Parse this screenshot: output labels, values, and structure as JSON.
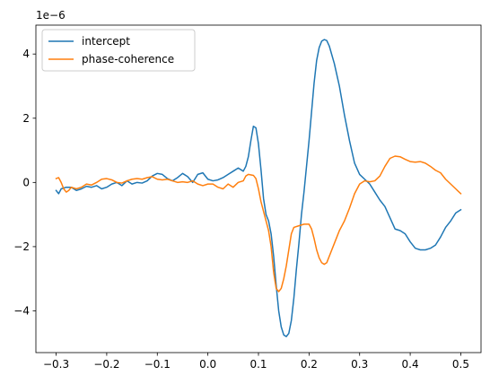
{
  "chart_data": {
    "type": "line",
    "title": "",
    "xlabel": "",
    "ylabel": "",
    "y_offset_label": "1e−6",
    "xlim": [
      -0.34,
      0.54
    ],
    "ylim": [
      -5.3,
      4.9
    ],
    "xticks": [
      {
        "value": -0.3,
        "label": "−0.3"
      },
      {
        "value": -0.2,
        "label": "−0.2"
      },
      {
        "value": -0.1,
        "label": "−0.1"
      },
      {
        "value": 0.0,
        "label": "0.0"
      },
      {
        "value": 0.1,
        "label": "0.1"
      },
      {
        "value": 0.2,
        "label": "0.2"
      },
      {
        "value": 0.3,
        "label": "0.3"
      },
      {
        "value": 0.4,
        "label": "0.4"
      },
      {
        "value": 0.5,
        "label": "0.5"
      }
    ],
    "yticks": [
      {
        "value": -4,
        "label": "−4"
      },
      {
        "value": -2,
        "label": "−2"
      },
      {
        "value": 0,
        "label": "0"
      },
      {
        "value": 2,
        "label": "2"
      },
      {
        "value": 4,
        "label": "4"
      }
    ],
    "grid": false,
    "legend": "upper-left",
    "series": [
      {
        "name": "intercept",
        "color": "#1f77b4",
        "points": [
          [
            -0.3,
            -0.25
          ],
          [
            -0.295,
            -0.35
          ],
          [
            -0.29,
            -0.2
          ],
          [
            -0.28,
            -0.15
          ],
          [
            -0.27,
            -0.15
          ],
          [
            -0.26,
            -0.25
          ],
          [
            -0.25,
            -0.2
          ],
          [
            -0.24,
            -0.12
          ],
          [
            -0.23,
            -0.15
          ],
          [
            -0.22,
            -0.1
          ],
          [
            -0.21,
            -0.2
          ],
          [
            -0.2,
            -0.15
          ],
          [
            -0.19,
            -0.05
          ],
          [
            -0.18,
            0.0
          ],
          [
            -0.17,
            -0.1
          ],
          [
            -0.16,
            0.05
          ],
          [
            -0.15,
            -0.05
          ],
          [
            -0.14,
            0.0
          ],
          [
            -0.13,
            -0.02
          ],
          [
            -0.12,
            0.05
          ],
          [
            -0.11,
            0.2
          ],
          [
            -0.1,
            0.28
          ],
          [
            -0.09,
            0.25
          ],
          [
            -0.08,
            0.12
          ],
          [
            -0.07,
            0.05
          ],
          [
            -0.06,
            0.15
          ],
          [
            -0.05,
            0.28
          ],
          [
            -0.04,
            0.18
          ],
          [
            -0.03,
            0.0
          ],
          [
            -0.02,
            0.25
          ],
          [
            -0.01,
            0.3
          ],
          [
            0.0,
            0.1
          ],
          [
            0.01,
            0.05
          ],
          [
            0.02,
            0.08
          ],
          [
            0.03,
            0.15
          ],
          [
            0.04,
            0.25
          ],
          [
            0.05,
            0.35
          ],
          [
            0.06,
            0.45
          ],
          [
            0.07,
            0.35
          ],
          [
            0.075,
            0.5
          ],
          [
            0.08,
            0.8
          ],
          [
            0.085,
            1.3
          ],
          [
            0.09,
            1.75
          ],
          [
            0.095,
            1.7
          ],
          [
            0.1,
            1.2
          ],
          [
            0.105,
            0.4
          ],
          [
            0.11,
            -0.5
          ],
          [
            0.115,
            -1.0
          ],
          [
            0.12,
            -1.2
          ],
          [
            0.125,
            -1.6
          ],
          [
            0.13,
            -2.3
          ],
          [
            0.135,
            -3.2
          ],
          [
            0.14,
            -4.0
          ],
          [
            0.145,
            -4.5
          ],
          [
            0.15,
            -4.75
          ],
          [
            0.155,
            -4.8
          ],
          [
            0.16,
            -4.7
          ],
          [
            0.165,
            -4.3
          ],
          [
            0.17,
            -3.6
          ],
          [
            0.175,
            -2.7
          ],
          [
            0.18,
            -1.9
          ],
          [
            0.185,
            -1.0
          ],
          [
            0.19,
            -0.3
          ],
          [
            0.195,
            0.5
          ],
          [
            0.2,
            1.3
          ],
          [
            0.205,
            2.2
          ],
          [
            0.21,
            3.1
          ],
          [
            0.215,
            3.8
          ],
          [
            0.22,
            4.2
          ],
          [
            0.225,
            4.4
          ],
          [
            0.23,
            4.45
          ],
          [
            0.235,
            4.42
          ],
          [
            0.24,
            4.25
          ],
          [
            0.25,
            3.7
          ],
          [
            0.26,
            3.0
          ],
          [
            0.27,
            2.1
          ],
          [
            0.28,
            1.3
          ],
          [
            0.29,
            0.6
          ],
          [
            0.3,
            0.25
          ],
          [
            0.31,
            0.1
          ],
          [
            0.32,
            -0.05
          ],
          [
            0.33,
            -0.3
          ],
          [
            0.34,
            -0.55
          ],
          [
            0.35,
            -0.75
          ],
          [
            0.36,
            -1.1
          ],
          [
            0.37,
            -1.45
          ],
          [
            0.38,
            -1.5
          ],
          [
            0.39,
            -1.6
          ],
          [
            0.4,
            -1.85
          ],
          [
            0.41,
            -2.05
          ],
          [
            0.42,
            -2.1
          ],
          [
            0.43,
            -2.1
          ],
          [
            0.44,
            -2.05
          ],
          [
            0.45,
            -1.95
          ],
          [
            0.46,
            -1.7
          ],
          [
            0.47,
            -1.4
          ],
          [
            0.48,
            -1.2
          ],
          [
            0.49,
            -0.95
          ],
          [
            0.5,
            -0.85
          ]
        ]
      },
      {
        "name": "phase-coherence",
        "color": "#ff7f0e",
        "points": [
          [
            -0.3,
            0.12
          ],
          [
            -0.295,
            0.15
          ],
          [
            -0.29,
            0.0
          ],
          [
            -0.285,
            -0.2
          ],
          [
            -0.28,
            -0.3
          ],
          [
            -0.275,
            -0.25
          ],
          [
            -0.27,
            -0.15
          ],
          [
            -0.26,
            -0.2
          ],
          [
            -0.25,
            -0.15
          ],
          [
            -0.24,
            -0.05
          ],
          [
            -0.23,
            -0.08
          ],
          [
            -0.22,
            0.0
          ],
          [
            -0.21,
            0.1
          ],
          [
            -0.2,
            0.12
          ],
          [
            -0.19,
            0.08
          ],
          [
            -0.18,
            0.0
          ],
          [
            -0.17,
            -0.02
          ],
          [
            -0.16,
            0.05
          ],
          [
            -0.15,
            0.1
          ],
          [
            -0.14,
            0.12
          ],
          [
            -0.13,
            0.1
          ],
          [
            -0.12,
            0.15
          ],
          [
            -0.11,
            0.18
          ],
          [
            -0.1,
            0.1
          ],
          [
            -0.09,
            0.08
          ],
          [
            -0.08,
            0.1
          ],
          [
            -0.07,
            0.05
          ],
          [
            -0.06,
            0.0
          ],
          [
            -0.05,
            0.02
          ],
          [
            -0.04,
            0.0
          ],
          [
            -0.03,
            0.05
          ],
          [
            -0.02,
            -0.05
          ],
          [
            -0.01,
            -0.1
          ],
          [
            0.0,
            -0.05
          ],
          [
            0.01,
            -0.05
          ],
          [
            0.02,
            -0.15
          ],
          [
            0.03,
            -0.2
          ],
          [
            0.04,
            -0.05
          ],
          [
            0.05,
            -0.15
          ],
          [
            0.06,
            0.0
          ],
          [
            0.07,
            0.05
          ],
          [
            0.075,
            0.2
          ],
          [
            0.08,
            0.25
          ],
          [
            0.09,
            0.22
          ],
          [
            0.095,
            0.12
          ],
          [
            0.1,
            -0.2
          ],
          [
            0.105,
            -0.6
          ],
          [
            0.11,
            -0.9
          ],
          [
            0.115,
            -1.2
          ],
          [
            0.12,
            -1.5
          ],
          [
            0.125,
            -2.0
          ],
          [
            0.13,
            -2.8
          ],
          [
            0.135,
            -3.3
          ],
          [
            0.14,
            -3.4
          ],
          [
            0.145,
            -3.3
          ],
          [
            0.15,
            -3.0
          ],
          [
            0.155,
            -2.6
          ],
          [
            0.16,
            -2.1
          ],
          [
            0.165,
            -1.6
          ],
          [
            0.17,
            -1.4
          ],
          [
            0.18,
            -1.35
          ],
          [
            0.19,
            -1.3
          ],
          [
            0.2,
            -1.3
          ],
          [
            0.205,
            -1.45
          ],
          [
            0.21,
            -1.75
          ],
          [
            0.215,
            -2.1
          ],
          [
            0.22,
            -2.35
          ],
          [
            0.225,
            -2.5
          ],
          [
            0.23,
            -2.55
          ],
          [
            0.235,
            -2.5
          ],
          [
            0.24,
            -2.3
          ],
          [
            0.25,
            -1.9
          ],
          [
            0.26,
            -1.5
          ],
          [
            0.27,
            -1.2
          ],
          [
            0.28,
            -0.8
          ],
          [
            0.29,
            -0.35
          ],
          [
            0.3,
            -0.05
          ],
          [
            0.31,
            0.05
          ],
          [
            0.32,
            0.02
          ],
          [
            0.33,
            0.05
          ],
          [
            0.34,
            0.2
          ],
          [
            0.35,
            0.5
          ],
          [
            0.36,
            0.75
          ],
          [
            0.37,
            0.82
          ],
          [
            0.38,
            0.8
          ],
          [
            0.39,
            0.72
          ],
          [
            0.4,
            0.65
          ],
          [
            0.41,
            0.63
          ],
          [
            0.42,
            0.65
          ],
          [
            0.43,
            0.6
          ],
          [
            0.44,
            0.5
          ],
          [
            0.45,
            0.38
          ],
          [
            0.46,
            0.3
          ],
          [
            0.47,
            0.1
          ],
          [
            0.48,
            -0.05
          ],
          [
            0.49,
            -0.2
          ],
          [
            0.5,
            -0.35
          ]
        ]
      }
    ]
  }
}
